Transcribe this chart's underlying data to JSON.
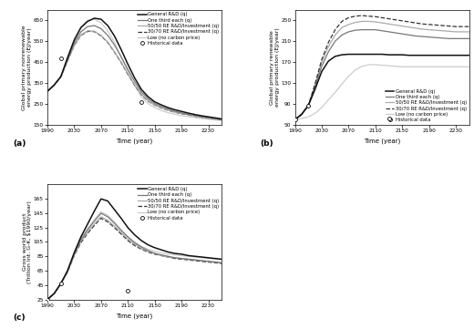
{
  "title_a": "(a)",
  "title_b": "(b)",
  "title_c": "(c)",
  "ylabel_a": "Global primary nonrenewable\nenergy production (EJ/year)",
  "ylabel_b": "Global primary renewable\nenergy production (EJ/year)",
  "ylabel_c": "Gross world product\n(Trillion Int. G-K, $1990/year)",
  "xlabel": "Time (year)",
  "xlim": [
    1990,
    2250
  ],
  "xticks": [
    1990,
    2030,
    2070,
    2110,
    2150,
    2190,
    2230
  ],
  "ylim_a": [
    150,
    700
  ],
  "yticks_a": [
    150,
    250,
    350,
    450,
    550,
    650
  ],
  "ylim_b": [
    50,
    270
  ],
  "yticks_b": [
    50,
    90,
    130,
    170,
    210,
    250
  ],
  "ylim_c": [
    25,
    185
  ],
  "yticks_c": [
    25,
    45,
    65,
    85,
    105,
    125,
    145,
    165
  ],
  "legend_labels": [
    "General R&D (q)",
    "One third each (q)",
    "50/50 RE R&D/Investment (q)",
    "30/70 RE R&D/Investment (q)",
    "Low (no carbon price)",
    "Historical data"
  ],
  "hist_points_a": [
    [
      2010,
      470
    ],
    [
      2130,
      260
    ]
  ],
  "hist_points_b": [
    [
      1990,
      60
    ],
    [
      2010,
      87
    ],
    [
      2130,
      62
    ]
  ],
  "hist_points_c": [
    [
      1990,
      25
    ],
    [
      2010,
      47
    ],
    [
      2110,
      37
    ]
  ],
  "colors": {
    "general": "#111111",
    "one_third": "#777777",
    "fifty_fifty": "#aaaaaa",
    "thirty_seventy": "#333333",
    "low": "#cccccc"
  },
  "time": [
    1990,
    2000,
    2010,
    2020,
    2030,
    2040,
    2050,
    2060,
    2070,
    2080,
    2090,
    2100,
    2110,
    2120,
    2130,
    2140,
    2150,
    2160,
    2170,
    2180,
    2190,
    2200,
    2210,
    2220,
    2230,
    2240,
    2250
  ],
  "a_general": [
    310,
    340,
    380,
    470,
    555,
    615,
    645,
    660,
    655,
    625,
    575,
    510,
    440,
    375,
    320,
    285,
    260,
    245,
    232,
    222,
    214,
    206,
    199,
    193,
    188,
    183,
    178
  ],
  "a_one_third": [
    310,
    340,
    380,
    460,
    540,
    595,
    620,
    625,
    610,
    578,
    532,
    475,
    415,
    358,
    308,
    275,
    252,
    237,
    225,
    215,
    207,
    200,
    194,
    188,
    183,
    179,
    175
  ],
  "a_fifty_fifty": [
    310,
    340,
    380,
    455,
    530,
    580,
    600,
    598,
    578,
    546,
    500,
    450,
    393,
    342,
    297,
    266,
    245,
    231,
    220,
    211,
    204,
    198,
    192,
    187,
    183,
    179,
    175
  ],
  "a_thirty_seventy": [
    310,
    340,
    380,
    455,
    530,
    578,
    597,
    596,
    576,
    544,
    498,
    448,
    391,
    340,
    295,
    264,
    244,
    230,
    219,
    210,
    203,
    197,
    191,
    186,
    182,
    178,
    174
  ],
  "a_low": [
    310,
    340,
    380,
    475,
    560,
    620,
    650,
    655,
    638,
    600,
    545,
    475,
    405,
    338,
    285,
    252,
    232,
    218,
    208,
    200,
    194,
    189,
    184,
    180,
    176,
    173,
    170
  ],
  "b_general": [
    60,
    70,
    87,
    118,
    152,
    172,
    181,
    184,
    185,
    185,
    185,
    185,
    185,
    185,
    184,
    184,
    184,
    183,
    183,
    183,
    183,
    183,
    183,
    183,
    183,
    183,
    183
  ],
  "b_one_third": [
    60,
    70,
    87,
    122,
    162,
    190,
    210,
    222,
    228,
    231,
    232,
    232,
    232,
    230,
    228,
    226,
    224,
    222,
    220,
    219,
    218,
    217,
    216,
    215,
    215,
    215,
    215
  ],
  "b_fifty_fifty": [
    60,
    70,
    87,
    126,
    170,
    200,
    222,
    236,
    242,
    246,
    248,
    248,
    247,
    245,
    243,
    241,
    239,
    237,
    235,
    233,
    232,
    231,
    230,
    229,
    228,
    228,
    228
  ],
  "b_thirty_seventy": [
    60,
    70,
    87,
    128,
    175,
    208,
    232,
    248,
    255,
    258,
    259,
    258,
    257,
    255,
    253,
    251,
    249,
    247,
    245,
    243,
    242,
    241,
    240,
    239,
    238,
    238,
    238
  ],
  "b_low": [
    60,
    62,
    65,
    72,
    83,
    98,
    112,
    128,
    143,
    155,
    162,
    165,
    165,
    164,
    163,
    162,
    161,
    161,
    161,
    161,
    161,
    161,
    161,
    161,
    161,
    161,
    161
  ],
  "c_general": [
    25,
    33,
    47,
    65,
    90,
    112,
    130,
    148,
    165,
    162,
    150,
    138,
    125,
    115,
    107,
    101,
    97,
    94,
    91,
    89,
    88,
    86,
    85,
    84,
    83,
    82,
    81
  ],
  "c_one_third": [
    25,
    33,
    47,
    64,
    88,
    108,
    122,
    134,
    145,
    140,
    131,
    121,
    112,
    104,
    98,
    93,
    89,
    87,
    85,
    83,
    82,
    81,
    80,
    79,
    78,
    77,
    76
  ],
  "c_fifty_fifty": [
    25,
    33,
    47,
    63,
    87,
    106,
    119,
    130,
    140,
    135,
    127,
    118,
    109,
    102,
    96,
    92,
    89,
    86,
    84,
    83,
    82,
    81,
    80,
    79,
    78,
    77,
    76
  ],
  "c_thirty_seventy": [
    25,
    33,
    47,
    63,
    86,
    104,
    117,
    128,
    138,
    133,
    125,
    116,
    107,
    100,
    95,
    91,
    88,
    86,
    84,
    82,
    81,
    80,
    79,
    78,
    77,
    76,
    75
  ],
  "c_low": [
    25,
    33,
    47,
    65,
    90,
    110,
    124,
    136,
    147,
    142,
    133,
    122,
    112,
    105,
    99,
    95,
    92,
    90,
    88,
    87,
    86,
    85,
    84,
    83,
    82,
    81,
    80
  ]
}
